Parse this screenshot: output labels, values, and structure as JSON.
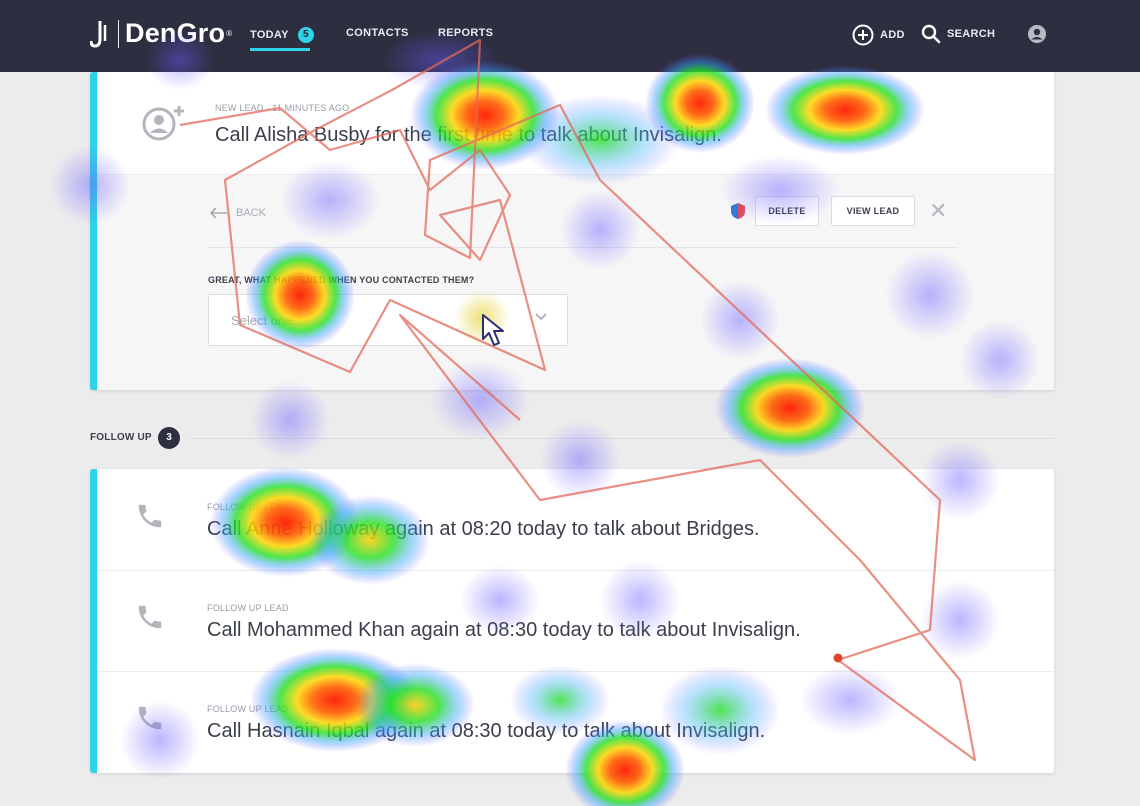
{
  "app": {
    "logo_text": "DenGro",
    "logo_tm": "®"
  },
  "nav": {
    "today_label": "TODAY",
    "today_count": "5",
    "contacts_label": "CONTACTS",
    "reports_label": "REPORTS",
    "add_label": "ADD",
    "search_label": "SEARCH"
  },
  "lead": {
    "meta": "NEW LEAD · 11 MINUTES AGO",
    "text": "Call Alisha Busby for the first time to talk about Invisalign.",
    "back_label": "BACK",
    "delete_label": "DELETE",
    "view_label": "VIEW LEAD",
    "question": "GREAT, WHAT HAPPENED WHEN YOU CONTACTED THEM?",
    "select_placeholder": "Select one..."
  },
  "follow_up": {
    "label": "FOLLOW UP",
    "count": "3",
    "rows": [
      {
        "meta": "FOLLOW UP LEAD",
        "text": "Call Anne Holloway again at 08:20 today to talk about Bridges."
      },
      {
        "meta": "FOLLOW UP LEAD",
        "text": "Call Mohammed Khan again at 08:30 today to talk about Invisalign."
      },
      {
        "meta": "FOLLOW UP LEAD",
        "text": "Call Hasnain Iqbal again at 08:30 today to talk about Invisalign."
      }
    ]
  },
  "colors": {
    "nav_bg": "#2d2e40",
    "accent": "#2ed3e8",
    "page_bg": "#ececed"
  },
  "icons": [
    "dengro-logo-icon",
    "add-circle-icon",
    "search-icon",
    "user-icon",
    "add-user-icon",
    "back-arrow-icon",
    "shield-icon",
    "close-icon",
    "chevron-down-icon",
    "phone-icon",
    "cursor-icon"
  ]
}
